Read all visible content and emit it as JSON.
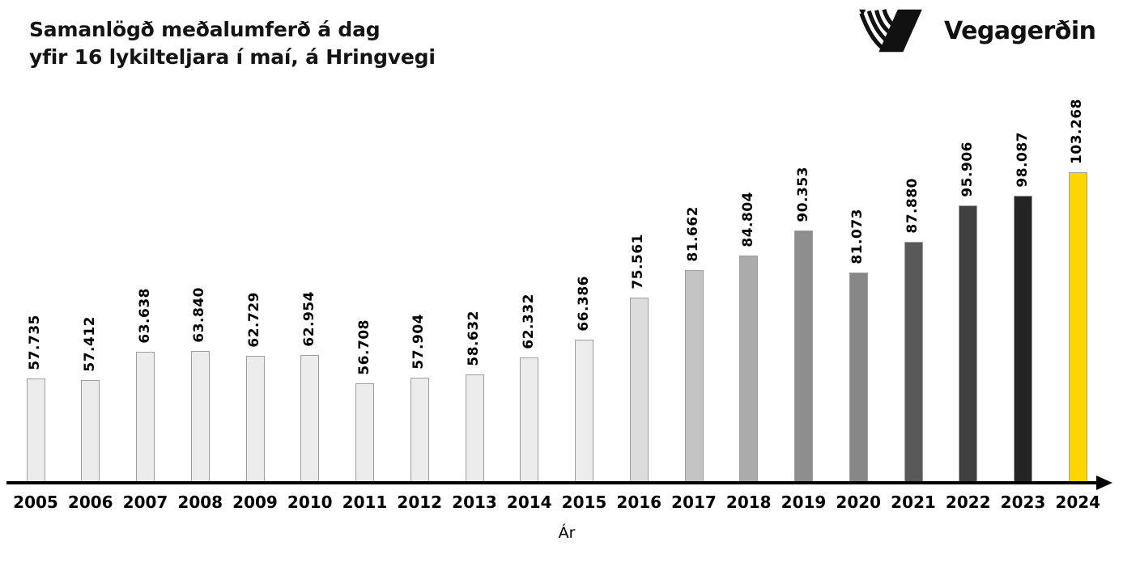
{
  "header": {
    "title_line1": "Samanlögð meðalumferð á dag",
    "title_line2": "yfir 16 lykilteljara í maí, á Hringvegi",
    "logo_text": "Vegagerðin",
    "logo_icon": "vegagerdin-striped-parallelogram",
    "logo_color": "#111111"
  },
  "chart_data": {
    "type": "bar",
    "title": "Samanlögð meðalumferð á dag yfir 16 lykilteljara í maí, á Hringvegi",
    "xlabel": "Ár",
    "ylabel": "",
    "categories": [
      "2005",
      "2006",
      "2007",
      "2008",
      "2009",
      "2010",
      "2011",
      "2012",
      "2013",
      "2014",
      "2015",
      "2016",
      "2017",
      "2018",
      "2019",
      "2020",
      "2021",
      "2022",
      "2023",
      "2024"
    ],
    "values": [
      57735,
      57412,
      63638,
      63840,
      62729,
      62954,
      56708,
      57904,
      58632,
      62332,
      66386,
      75561,
      81662,
      84804,
      90353,
      81073,
      87880,
      95906,
      98087,
      103268
    ],
    "value_labels": [
      "57.735",
      "57.412",
      "63.638",
      "63.840",
      "62.729",
      "62.954",
      "56.708",
      "57.904",
      "58.632",
      "62.332",
      "66.386",
      "75.561",
      "81.662",
      "84.804",
      "90.353",
      "81.073",
      "87.880",
      "95.906",
      "98.087",
      "103.268"
    ],
    "bar_colors": [
      "#ececec",
      "#ececec",
      "#ececec",
      "#ececec",
      "#ececec",
      "#ececec",
      "#ececec",
      "#ececec",
      "#ececec",
      "#ececec",
      "#ececec",
      "#dcdcdc",
      "#c3c3c3",
      "#ababab",
      "#8d8d8d",
      "#878787",
      "#595959",
      "#404040",
      "#242424",
      "#ffd500"
    ],
    "bar_border_color": "#9e9e9e",
    "highlight_category": "2024",
    "highlight_color": "#ffd500",
    "axis_color": "#000000",
    "value_label_color": "#000000",
    "tick_label_color": "#000000",
    "ylim": [
      34700,
      105000
    ],
    "grid": false,
    "legend": "none",
    "value_label_rotation_deg": 90,
    "thousands_separator": "."
  }
}
